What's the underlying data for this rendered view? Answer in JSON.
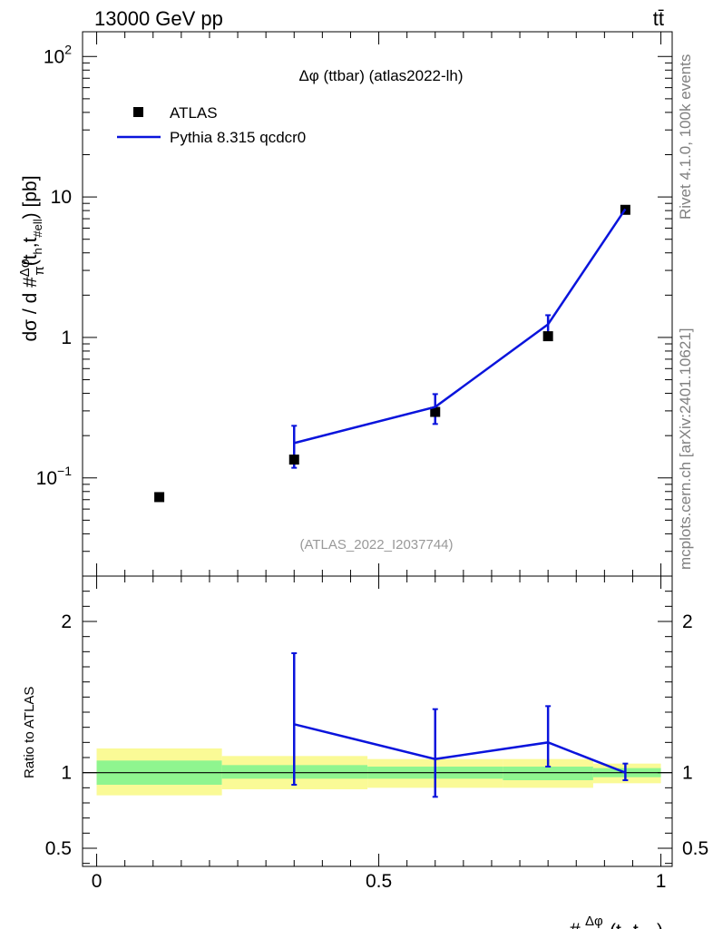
{
  "header": {
    "energy_label": "13000 GeV pp",
    "process_label": "tt̄"
  },
  "side_text": {
    "rivet": "Rivet 4.1.0,  100k events",
    "site": "mcplots.cern.ch [arXiv:2401.10621]"
  },
  "colors": {
    "mc": "#0a14dc",
    "band_inner": "#8ff58f",
    "band_outer": "#fafa96",
    "data": "#000000",
    "faint_text": "#999999",
    "side_text": "#808080"
  },
  "chart_data": {
    "type": "scatter",
    "title": "Δφ (ttbar) (atlas2022-lh)",
    "watermark": "(ATLAS_2022_I2037744)",
    "ylabel": "dσ / d #Δφ/π(t_h,t_#ell) [pb]",
    "xlabel": "#Δφ/π(t_h,t_#ell)",
    "ratio_ylabel": "Ratio to ATLAS",
    "xlim": [
      -0.025,
      1.02
    ],
    "ylim": [
      0.02,
      150
    ],
    "yscale": "log",
    "ratio_ylim": [
      0.38,
      2.3
    ],
    "x_ticks": [
      {
        "value": 0,
        "label": "0"
      },
      {
        "value": 0.5,
        "label": "0.5"
      },
      {
        "value": 1,
        "label": "1"
      }
    ],
    "y_ticks": [
      {
        "value": 0.1,
        "base": "10",
        "exp": "−1"
      },
      {
        "value": 1,
        "base": "1",
        "exp": ""
      },
      {
        "value": 10,
        "base": "10",
        "exp": ""
      },
      {
        "value": 100,
        "base": "10",
        "exp": "2"
      }
    ],
    "ratio_ticks": [
      {
        "value": 0.5,
        "label": "0.5"
      },
      {
        "value": 1,
        "label": "1"
      },
      {
        "value": 2,
        "label": "2"
      }
    ],
    "legend": [
      "ATLAS",
      "Pythia 8.315 qcdcr0"
    ],
    "data_series": {
      "name": "ATLAS",
      "x": [
        0.111,
        0.35,
        0.6,
        0.8,
        0.937
      ],
      "y": [
        0.073,
        0.135,
        0.295,
        1.02,
        8.1
      ]
    },
    "mc_series": {
      "name": "Pythia 8.315 qcdcr0",
      "x": [
        0.35,
        0.6,
        0.8,
        0.937
      ],
      "y": [
        0.177,
        0.32,
        1.24,
        8.2
      ],
      "y_err_up": [
        0.235,
        0.395,
        1.44,
        8.5
      ],
      "y_err_down": [
        0.118,
        0.242,
        1.06,
        7.9
      ]
    },
    "ratio_series": {
      "x": [
        0.35,
        0.6,
        0.8,
        0.937
      ],
      "y": [
        1.32,
        1.09,
        1.2,
        1.0
      ],
      "y_err_up": [
        1.79,
        1.42,
        1.44,
        1.06
      ],
      "y_err_down": [
        0.92,
        0.84,
        1.04,
        0.95
      ]
    },
    "ratio_bands": [
      {
        "x_low": 0.0,
        "x_high": 0.222,
        "inner": [
          0.92,
          1.08
        ],
        "outer": [
          0.85,
          1.16
        ]
      },
      {
        "x_low": 0.222,
        "x_high": 0.48,
        "inner": [
          0.96,
          1.05
        ],
        "outer": [
          0.89,
          1.11
        ]
      },
      {
        "x_low": 0.48,
        "x_high": 0.72,
        "inner": [
          0.96,
          1.04
        ],
        "outer": [
          0.9,
          1.09
        ]
      },
      {
        "x_low": 0.72,
        "x_high": 0.88,
        "inner": [
          0.95,
          1.04
        ],
        "outer": [
          0.9,
          1.09
        ]
      },
      {
        "x_low": 0.88,
        "x_high": 1.0,
        "inner": [
          0.97,
          1.03
        ],
        "outer": [
          0.93,
          1.06
        ]
      }
    ]
  }
}
